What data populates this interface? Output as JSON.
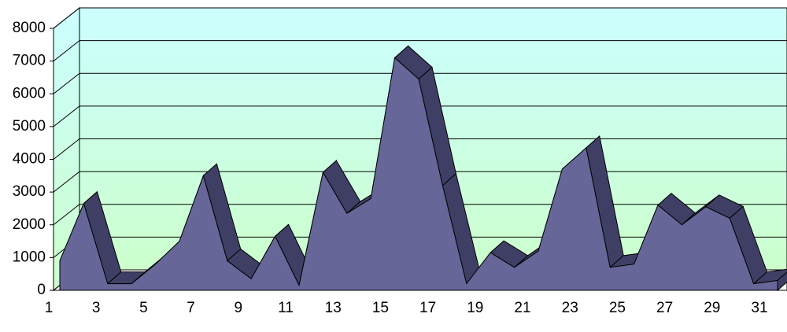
{
  "chart_data": {
    "type": "area3d",
    "categories": [
      "1",
      null,
      "3",
      null,
      "5",
      null,
      "7",
      null,
      "9",
      null,
      "11",
      null,
      "13",
      null,
      "15",
      null,
      "17",
      null,
      "19",
      null,
      "21",
      null,
      "23",
      null,
      "25",
      null,
      "27",
      null,
      "29",
      null,
      "31"
    ],
    "values": [
      900,
      2650,
      200,
      200,
      800,
      1500,
      3500,
      900,
      350,
      1650,
      150,
      3600,
      2350,
      2800,
      7100,
      6450,
      3200,
      200,
      1150,
      700,
      1200,
      3700,
      4350,
      700,
      800,
      2600,
      2000,
      2550,
      2200,
      200,
      300
    ],
    "color": "#666699",
    "ylim": [
      0,
      8000
    ],
    "yticks": [
      0,
      1000,
      2000,
      3000,
      4000,
      5000,
      6000,
      7000,
      8000
    ],
    "grid": true
  }
}
